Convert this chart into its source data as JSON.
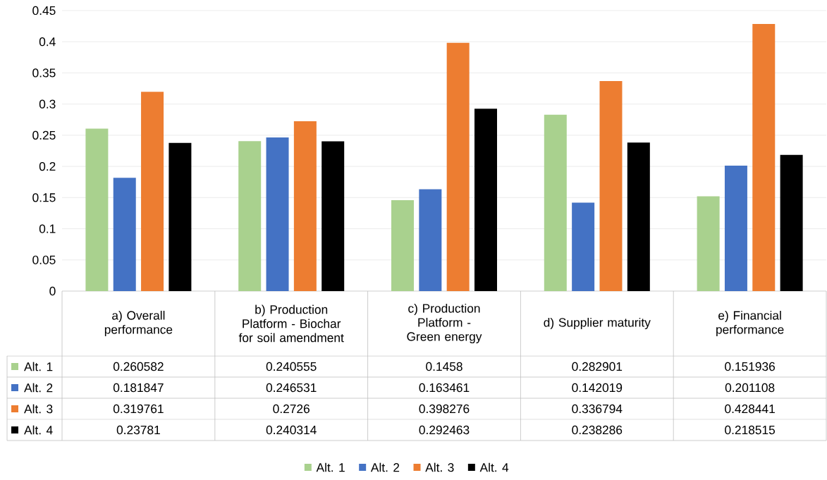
{
  "chart_data": {
    "type": "bar",
    "categories": [
      "a) Overall performance",
      "b) Production Platform - Biochar for soil amendment",
      "c) Production Platform - Green energy",
      "d) Supplier maturity",
      "e) Financial performance"
    ],
    "series": [
      {
        "name": "Alt. 1",
        "color": "#a9d18e",
        "values": [
          0.260582,
          0.240555,
          0.1458,
          0.282901,
          0.151936
        ]
      },
      {
        "name": "Alt. 2",
        "color": "#4472c4",
        "values": [
          0.181847,
          0.246531,
          0.163461,
          0.142019,
          0.201108
        ]
      },
      {
        "name": "Alt. 3",
        "color": "#ed7d31",
        "values": [
          0.319761,
          0.2726,
          0.398276,
          0.336794,
          0.428441
        ]
      },
      {
        "name": "Alt. 4",
        "color": "#000000",
        "values": [
          0.23781,
          0.240314,
          0.292463,
          0.238286,
          0.218515
        ]
      }
    ],
    "ylim": [
      0,
      0.45
    ],
    "yticks": [
      0,
      0.05,
      0.1,
      0.15,
      0.2,
      0.25,
      0.3,
      0.35,
      0.4,
      0.45
    ],
    "grid": "y",
    "legend": "bottom",
    "data_labels": true
  }
}
